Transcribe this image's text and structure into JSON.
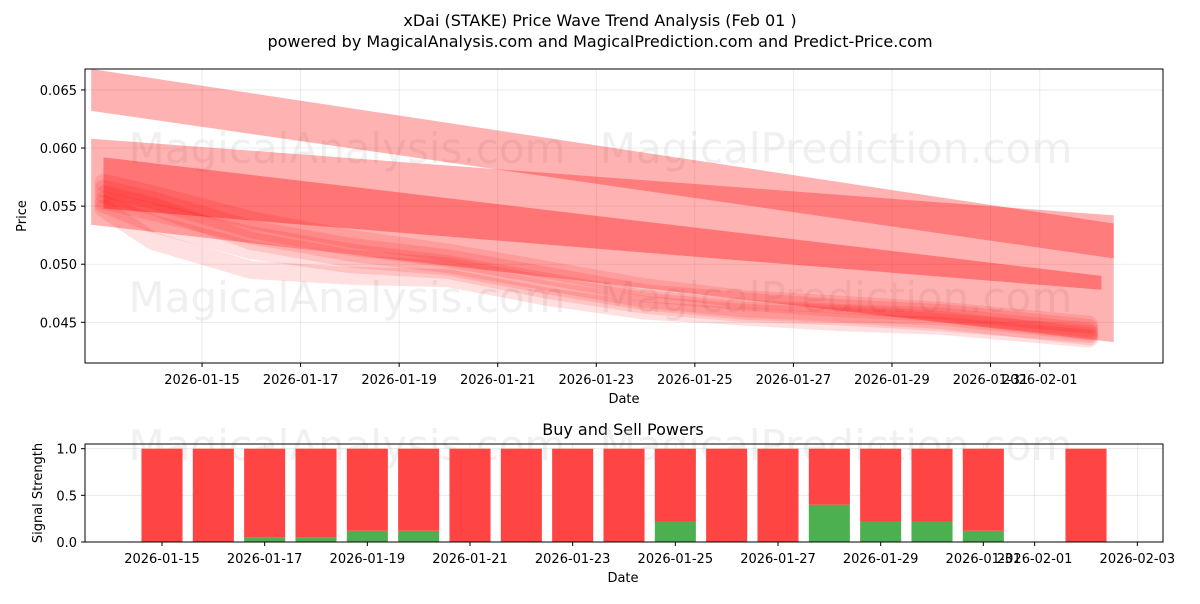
{
  "chart_data": [
    {
      "type": "area",
      "title": "xDai (STAKE) Price Wave Trend Analysis (Feb 01 )",
      "subtitle": "powered by MagicalAnalysis.com and MagicalPrediction.com and Predict-Price.com",
      "xlabel": "Date",
      "ylabel": "Price",
      "ylim": [
        0.0415,
        0.0668
      ],
      "xlim": [
        "2026-01-12T15:00",
        "2026-02-03T12:00"
      ],
      "x_ticks": [
        "2026-01-15",
        "2026-01-17",
        "2026-01-19",
        "2026-01-21",
        "2026-01-23",
        "2026-01-25",
        "2026-01-27",
        "2026-01-29",
        "2026-01-31",
        "2026-02-01"
      ],
      "y_ticks": [
        0.045,
        0.05,
        0.055,
        0.06,
        0.065
      ],
      "y_tick_labels": [
        "0.045",
        "0.050",
        "0.055",
        "0.060",
        "0.065"
      ],
      "grid": true,
      "color": "#ff0000",
      "bands": [
        {
          "x": [
            "2026-01-12T18:00",
            "2026-02-02T12:00"
          ],
          "upper": [
            0.0668,
            0.0535
          ],
          "lower": [
            0.0632,
            0.0505
          ]
        },
        {
          "x": [
            "2026-01-12T18:00",
            "2026-02-02T12:00"
          ],
          "upper": [
            0.0608,
            0.0542
          ],
          "lower": [
            0.0534,
            0.0433
          ]
        },
        {
          "x": [
            "2026-01-13T00:00",
            "2026-02-02T06:00"
          ],
          "upper": [
            0.0592,
            0.049
          ],
          "lower": [
            0.0548,
            0.0478
          ]
        }
      ],
      "wave_lines": [
        {
          "x": [
            "2026-01-13",
            "2026-01-14",
            "2026-01-16",
            "2026-01-18",
            "2026-01-20",
            "2026-01-22",
            "2026-01-24",
            "2026-01-26",
            "2026-01-28",
            "2026-01-30",
            "2026-02-02"
          ],
          "y": [
            0.0555,
            0.0545,
            0.0525,
            0.051,
            0.05,
            0.0485,
            0.047,
            0.0462,
            0.0458,
            0.0455,
            0.0442
          ]
        },
        {
          "x": [
            "2026-01-13",
            "2026-01-14",
            "2026-01-16",
            "2026-01-18",
            "2026-01-20",
            "2026-01-22",
            "2026-01-24",
            "2026-01-26",
            "2026-01-28",
            "2026-01-30",
            "2026-02-02"
          ],
          "y": [
            0.0565,
            0.0555,
            0.053,
            0.0515,
            0.0505,
            0.049,
            0.0475,
            0.0468,
            0.0462,
            0.0458,
            0.0445
          ]
        },
        {
          "x": [
            "2026-01-13",
            "2026-01-14",
            "2026-01-16",
            "2026-01-18",
            "2026-01-20",
            "2026-01-22",
            "2026-01-24",
            "2026-01-26",
            "2026-01-28",
            "2026-01-30",
            "2026-02-02"
          ],
          "y": [
            0.0548,
            0.052,
            0.0495,
            0.049,
            0.0488,
            0.0472,
            0.046,
            0.0455,
            0.045,
            0.0447,
            0.0436
          ]
        },
        {
          "x": [
            "2026-01-13",
            "2026-01-14",
            "2026-01-16",
            "2026-01-18",
            "2026-01-20",
            "2026-01-22",
            "2026-01-24",
            "2026-01-26",
            "2026-01-28",
            "2026-01-30",
            "2026-02-02"
          ],
          "y": [
            0.057,
            0.056,
            0.0538,
            0.0522,
            0.051,
            0.0495,
            0.048,
            0.047,
            0.0465,
            0.046,
            0.0448
          ]
        },
        {
          "x": [
            "2026-01-13",
            "2026-01-14",
            "2026-01-16",
            "2026-01-18",
            "2026-01-20",
            "2026-01-22",
            "2026-01-24",
            "2026-01-26",
            "2026-01-28",
            "2026-01-30",
            "2026-02-02"
          ],
          "y": [
            0.0552,
            0.0535,
            0.0512,
            0.05,
            0.0495,
            0.0478,
            0.0465,
            0.0458,
            0.0455,
            0.045,
            0.044
          ]
        },
        {
          "x": [
            "2026-01-13",
            "2026-01-14",
            "2026-01-16",
            "2026-01-18",
            "2026-01-20",
            "2026-01-22",
            "2026-01-24",
            "2026-01-26",
            "2026-01-28",
            "2026-01-30",
            "2026-02-02"
          ],
          "y": [
            0.056,
            0.055,
            0.052,
            0.0505,
            0.0498,
            0.0482,
            0.0468,
            0.046,
            0.0457,
            0.0452,
            0.0438
          ]
        }
      ],
      "watermarks": [
        "MagicalAnalysis.com",
        "MagicalPrediction.com"
      ]
    },
    {
      "type": "bar",
      "title": "Buy and Sell Powers",
      "xlabel": "Date",
      "ylabel": "Signal Strength",
      "ylim": [
        0,
        1.05
      ],
      "xlim": [
        "2026-01-13T12:00",
        "2026-02-03T12:00"
      ],
      "x_ticks": [
        "2026-01-15",
        "2026-01-17",
        "2026-01-19",
        "2026-01-21",
        "2026-01-23",
        "2026-01-25",
        "2026-01-27",
        "2026-01-29",
        "2026-01-31",
        "2026-02-01",
        "2026-02-03"
      ],
      "y_ticks": [
        0.0,
        0.5,
        1.0
      ],
      "y_tick_labels": [
        "0.0",
        "0.5",
        "1.0"
      ],
      "grid": true,
      "categories": [
        "2026-01-15",
        "2026-01-16",
        "2026-01-17",
        "2026-01-18",
        "2026-01-19",
        "2026-01-20",
        "2026-01-21",
        "2026-01-22",
        "2026-01-23",
        "2026-01-24",
        "2026-01-25",
        "2026-01-26",
        "2026-01-27",
        "2026-01-28",
        "2026-01-29",
        "2026-01-30",
        "2026-01-31",
        "2026-02-02"
      ],
      "series": [
        {
          "name": "Buy",
          "color": "#4caf50",
          "values": [
            0,
            0,
            0.05,
            0.05,
            0.12,
            0.12,
            0,
            0,
            0,
            0,
            0.22,
            0,
            0,
            0.4,
            0.22,
            0.22,
            0.12,
            0
          ]
        },
        {
          "name": "Sell",
          "color": "#ff4444",
          "values": [
            1,
            1,
            0.95,
            0.95,
            0.88,
            0.88,
            1,
            1,
            1,
            1,
            0.78,
            1,
            1,
            0.6,
            0.78,
            0.78,
            0.88,
            1
          ]
        }
      ],
      "watermarks": [
        "MagicalAnalysis.com",
        "MagicalPrediction.com"
      ]
    }
  ]
}
